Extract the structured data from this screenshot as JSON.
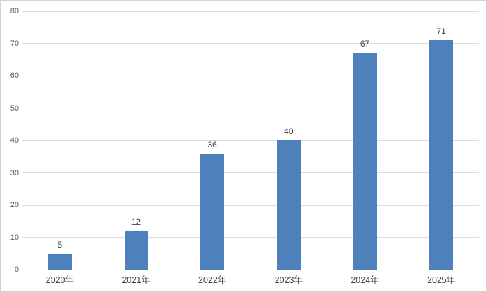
{
  "chart_data": {
    "type": "bar",
    "title": "",
    "xlabel": "",
    "ylabel": "",
    "categories": [
      "2020年",
      "2021年",
      "2022年",
      "2023年",
      "2024年",
      "2025年"
    ],
    "values": [
      5,
      12,
      36,
      40,
      67,
      71
    ],
    "data_labels": [
      5,
      12,
      36,
      40,
      67,
      71
    ],
    "ylim": [
      0,
      80
    ],
    "yticks": [
      0,
      10,
      20,
      30,
      40,
      50,
      60,
      70,
      80
    ],
    "grid": true,
    "legend": false
  },
  "colors": {
    "bar_fill": "#4e80bc",
    "gridline": "#dcdcdc",
    "axis_line": "#c9c9c9",
    "ytick_label": "#595959",
    "xtick_label": "#424242",
    "value_label": "#404040",
    "frame_border": "#d2d2d2",
    "background": "#ffffff"
  }
}
